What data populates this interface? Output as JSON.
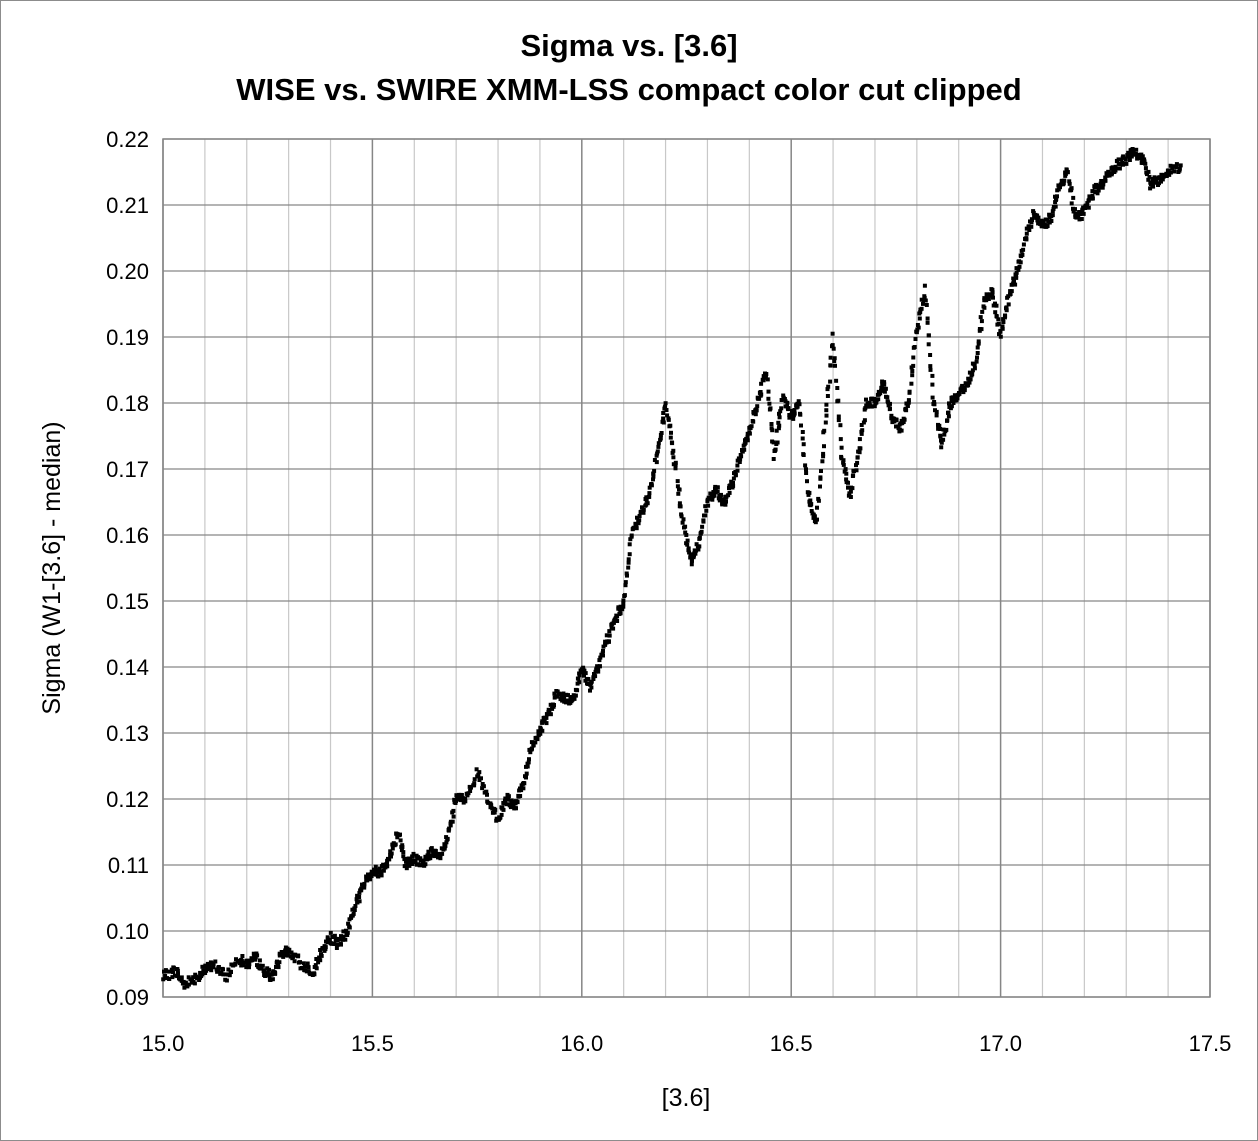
{
  "chart_data": {
    "type": "scatter",
    "title": "Sigma vs. [3.6]",
    "subtitle": "WISE vs. SWIRE XMM-LSS compact color cut clipped",
    "xlabel": "[3.6]",
    "ylabel": "Sigma (W1-[3.6] - median)",
    "xlim": [
      15.0,
      17.5
    ],
    "ylim": [
      0.09,
      0.22
    ],
    "x_major_ticks": [
      "15.0",
      "15.5",
      "16.0",
      "16.5",
      "17.0",
      "17.5"
    ],
    "y_major_ticks": [
      "0.09",
      "0.10",
      "0.11",
      "0.12",
      "0.13",
      "0.14",
      "0.15",
      "0.16",
      "0.17",
      "0.18",
      "0.19",
      "0.20",
      "0.21",
      "0.22"
    ],
    "grid": true,
    "legend": "none",
    "marker_color": "#000000",
    "series": [
      {
        "x": [
          15.0,
          15.03,
          15.05,
          15.08,
          15.1,
          15.12,
          15.15,
          15.18,
          15.2,
          15.22,
          15.24,
          15.26,
          15.28,
          15.3,
          15.33,
          15.36,
          15.38,
          15.4,
          15.42,
          15.44,
          15.46,
          15.48,
          15.5,
          15.52,
          15.54,
          15.56,
          15.58,
          15.6,
          15.62,
          15.64,
          15.66,
          15.68,
          15.7,
          15.72,
          15.75,
          15.78,
          15.8,
          15.82,
          15.84,
          15.86,
          15.88,
          15.9,
          15.92,
          15.94,
          15.96,
          15.98,
          16.0,
          16.02,
          16.04,
          16.06,
          16.08,
          16.1,
          16.12,
          16.14,
          16.16,
          16.18,
          16.2,
          16.22,
          16.24,
          16.26,
          16.28,
          16.3,
          16.32,
          16.34,
          16.36,
          16.38,
          16.4,
          16.42,
          16.44,
          16.46,
          16.48,
          16.5,
          16.52,
          16.54,
          16.56,
          16.58,
          16.6,
          16.62,
          16.64,
          16.66,
          16.68,
          16.7,
          16.72,
          16.74,
          16.76,
          16.78,
          16.8,
          16.82,
          16.84,
          16.86,
          16.88,
          16.9,
          16.92,
          16.94,
          16.96,
          16.98,
          17.0,
          17.02,
          17.04,
          17.06,
          17.08,
          17.1,
          17.12,
          17.14,
          17.16,
          17.18,
          17.2,
          17.22,
          17.24,
          17.26,
          17.28,
          17.3,
          17.32,
          17.34,
          17.36,
          17.38,
          17.4,
          17.43
        ],
        "y": [
          0.093,
          0.094,
          0.092,
          0.093,
          0.094,
          0.095,
          0.093,
          0.096,
          0.095,
          0.096,
          0.094,
          0.093,
          0.096,
          0.097,
          0.095,
          0.094,
          0.097,
          0.099,
          0.098,
          0.1,
          0.104,
          0.107,
          0.109,
          0.109,
          0.111,
          0.115,
          0.11,
          0.111,
          0.11,
          0.112,
          0.111,
          0.114,
          0.12,
          0.12,
          0.124,
          0.119,
          0.117,
          0.12,
          0.119,
          0.122,
          0.128,
          0.13,
          0.133,
          0.136,
          0.135,
          0.135,
          0.14,
          0.137,
          0.14,
          0.144,
          0.147,
          0.15,
          0.16,
          0.163,
          0.166,
          0.172,
          0.18,
          0.172,
          0.163,
          0.156,
          0.159,
          0.165,
          0.167,
          0.165,
          0.168,
          0.172,
          0.176,
          0.18,
          0.185,
          0.172,
          0.181,
          0.178,
          0.18,
          0.166,
          0.162,
          0.176,
          0.19,
          0.172,
          0.166,
          0.172,
          0.18,
          0.18,
          0.183,
          0.178,
          0.176,
          0.18,
          0.191,
          0.197,
          0.18,
          0.174,
          0.18,
          0.181,
          0.183,
          0.186,
          0.195,
          0.197,
          0.19,
          0.196,
          0.2,
          0.205,
          0.209,
          0.207,
          0.208,
          0.213,
          0.215,
          0.208,
          0.209,
          0.212,
          0.213,
          0.215,
          0.216,
          0.217,
          0.218,
          0.217,
          0.213,
          0.214,
          0.215,
          0.216
        ]
      }
    ]
  }
}
